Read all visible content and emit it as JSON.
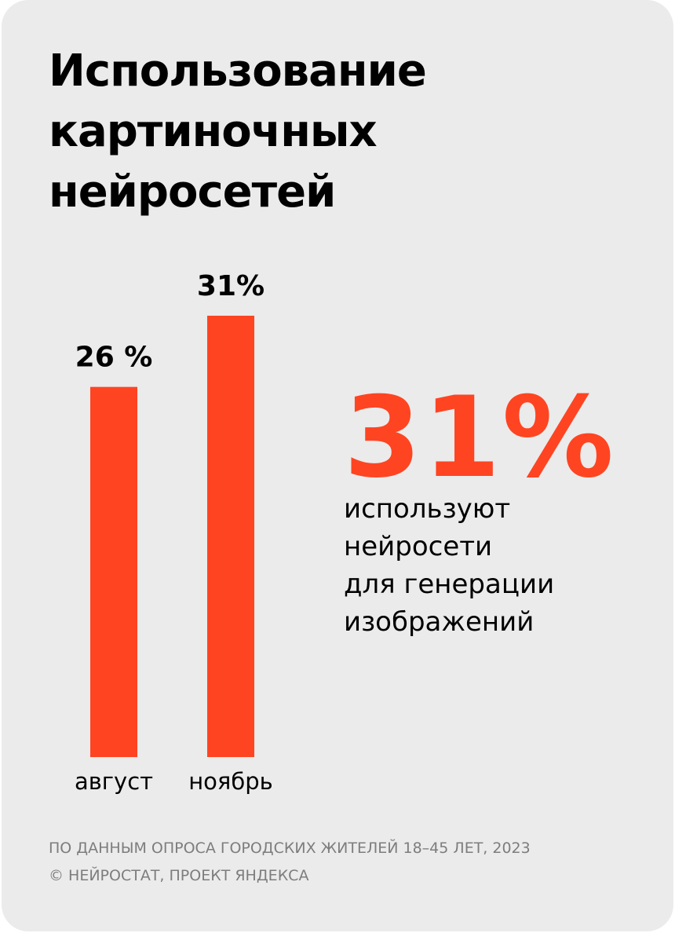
{
  "title_lines": [
    "Использование",
    "картиночных",
    "нейросетей"
  ],
  "accent_color": "#ff4422",
  "chart_data": {
    "type": "bar",
    "title": "Использование картиночных нейросетей",
    "categories": [
      "август",
      "ноябрь"
    ],
    "values": [
      26,
      31
    ],
    "value_labels": [
      "26 %",
      "31%"
    ],
    "unit": "%",
    "ylim": [
      0,
      38
    ],
    "grid": false,
    "legend": "none",
    "bar_color": "#ff4422"
  },
  "highlight": {
    "value_text": "31%",
    "description_lines": [
      "используют",
      "нейросети",
      "для генерации",
      "изображений"
    ]
  },
  "footnote_lines": [
    "ПО ДАННЫМ ОПРОСА ГОРОДСКИХ ЖИТЕЛЕЙ 18–45 ЛЕТ, 2023",
    "© НЕЙРОСТАТ, ПРОЕКТ ЯНДЕКСА"
  ]
}
